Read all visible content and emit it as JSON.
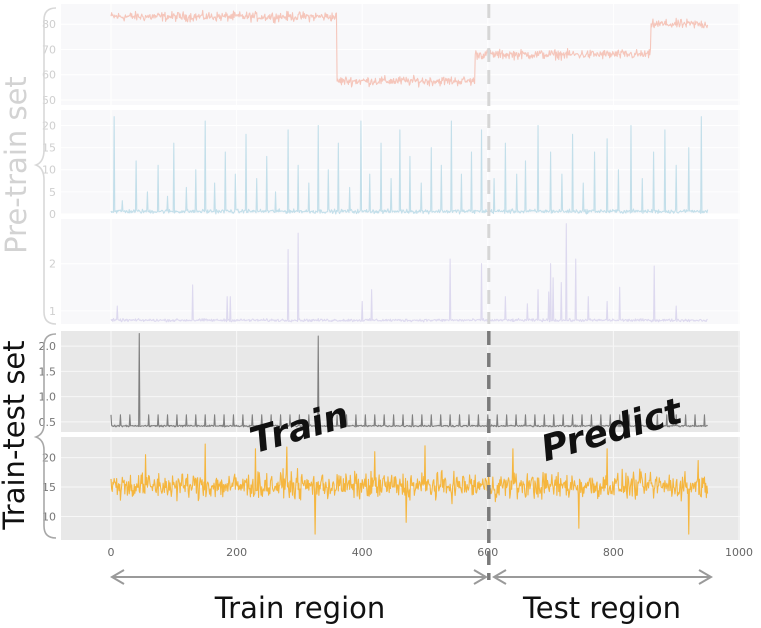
{
  "group_labels": {
    "pretrain": "Pre-train set",
    "traintest": "Train-test set"
  },
  "region_labels": {
    "train": "Train region",
    "test": "Test region"
  },
  "overlay": {
    "train": "Train",
    "predict": "Predict"
  },
  "colors": {
    "pretrain_bg": "#f8f8fa",
    "traintest_bg": "#e8e8e8",
    "dashed_pretrain": "#d6d6d6",
    "dashed_traintest": "#7a7a7a",
    "arrow": "#9a9a9a"
  },
  "chart_data": [
    {
      "type": "line",
      "group": "pretrain",
      "shape": "step",
      "series": [
        {
          "color": "#f5c6bb",
          "segments": [
            [
              0,
              83
            ],
            [
              360,
              57.5
            ],
            [
              580,
              68
            ],
            [
              860,
              80
            ],
            [
              950,
              80
            ]
          ],
          "noise": 1.6
        }
      ],
      "yticks": [
        50,
        60,
        70,
        80
      ],
      "ylim": [
        48,
        88
      ],
      "xlim": [
        0,
        950
      ]
    },
    {
      "type": "line",
      "group": "pretrain",
      "shape": "spiky",
      "series": [
        {
          "color": "#c3dfea",
          "baseline": 0.6,
          "noise": 0.4,
          "spikes": [
            [
              5,
              22
            ],
            [
              18,
              3
            ],
            [
              40,
              12
            ],
            [
              58,
              5
            ],
            [
              75,
              11
            ],
            [
              90,
              4
            ],
            [
              100,
              16
            ],
            [
              120,
              6
            ],
            [
              135,
              10
            ],
            [
              150,
              21
            ],
            [
              165,
              7
            ],
            [
              182,
              14
            ],
            [
              198,
              9
            ],
            [
              215,
              18
            ],
            [
              232,
              8
            ],
            [
              248,
              13
            ],
            [
              262,
              5
            ],
            [
              282,
              19
            ],
            [
              298,
              11
            ],
            [
              315,
              7
            ],
            [
              330,
              20
            ],
            [
              346,
              10
            ],
            [
              362,
              16
            ],
            [
              380,
              6
            ],
            [
              398,
              21
            ],
            [
              412,
              9
            ],
            [
              430,
              16
            ],
            [
              446,
              8
            ],
            [
              460,
              19
            ],
            [
              476,
              13
            ],
            [
              494,
              7
            ],
            [
              510,
              15
            ],
            [
              526,
              11
            ],
            [
              542,
              21
            ],
            [
              558,
              9
            ],
            [
              574,
              14
            ],
            [
              590,
              19
            ],
            [
              610,
              8
            ],
            [
              628,
              16
            ],
            [
              646,
              9
            ],
            [
              660,
              12
            ],
            [
              680,
              20
            ],
            [
              700,
              14
            ],
            [
              718,
              9
            ],
            [
              735,
              18
            ],
            [
              752,
              7
            ],
            [
              770,
              14
            ],
            [
              790,
              17
            ],
            [
              808,
              10
            ],
            [
              828,
              20
            ],
            [
              846,
              8
            ],
            [
              864,
              14
            ],
            [
              882,
              19
            ],
            [
              900,
              11
            ],
            [
              920,
              15
            ],
            [
              940,
              22
            ]
          ]
        }
      ],
      "yticks": [
        0,
        5,
        10,
        15,
        20
      ],
      "ylim": [
        0,
        23.5
      ],
      "xlim": [
        0,
        950
      ]
    },
    {
      "type": "line",
      "group": "pretrain",
      "shape": "spiky",
      "series": [
        {
          "color": "#ddd9ef",
          "baseline": 0.8,
          "noise": 0.025,
          "spikes": [
            [
              10,
              1.1
            ],
            [
              130,
              1.55
            ],
            [
              185,
              1.3
            ],
            [
              190,
              1.3
            ],
            [
              282,
              2.3
            ],
            [
              298,
              2.65
            ],
            [
              400,
              1.2
            ],
            [
              415,
              1.45
            ],
            [
              540,
              2.1
            ],
            [
              590,
              2.0
            ],
            [
              628,
              1.3
            ],
            [
              663,
              1.15
            ],
            [
              680,
              1.45
            ],
            [
              697,
              1.4
            ],
            [
              700,
              2.0
            ],
            [
              704,
              1.7
            ],
            [
              717,
              1.6
            ],
            [
              725,
              2.85
            ],
            [
              740,
              2.1
            ],
            [
              760,
              1.3
            ],
            [
              790,
              1.2
            ],
            [
              810,
              1.5
            ],
            [
              865,
              1.95
            ],
            [
              900,
              1.1
            ]
          ]
        }
      ],
      "yticks": [
        1,
        2
      ],
      "ylim": [
        0.72,
        2.95
      ],
      "xlim": [
        0,
        950
      ]
    },
    {
      "type": "line",
      "group": "traintest",
      "shape": "spiky",
      "series": [
        {
          "color": "#808080",
          "baseline": 0.42,
          "noise": 0.015,
          "periodic_spike": {
            "period": 15,
            "height": 0.22
          },
          "spikes": [
            [
              45,
              2.25
            ],
            [
              330,
              2.2
            ]
          ]
        }
      ],
      "yticks": [
        0.5,
        1.0,
        1.5,
        2.0
      ],
      "ylim": [
        0.3,
        2.3
      ],
      "xlim": [
        0,
        950
      ]
    },
    {
      "type": "line",
      "group": "traintest",
      "shape": "noisy",
      "series": [
        {
          "color": "#f5b63e",
          "baseline": 15.2,
          "noise": 1.9,
          "spikes": [
            [
              55,
              20.5
            ],
            [
              150,
              22.3
            ],
            [
              230,
              21.5
            ],
            [
              280,
              21.8
            ],
            [
              325,
              7.0
            ],
            [
              420,
              21.0
            ],
            [
              470,
              9.0
            ],
            [
              500,
              22.0
            ],
            [
              640,
              21.5
            ],
            [
              745,
              8.0
            ],
            [
              790,
              21.5
            ],
            [
              920,
              7.0
            ],
            [
              935,
              19.5
            ]
          ]
        }
      ],
      "yticks": [
        10,
        15,
        20
      ],
      "ylim": [
        6,
        23.5
      ],
      "xlim": [
        0,
        950
      ]
    }
  ],
  "x_axis": {
    "ticks": [
      0,
      200,
      400,
      600,
      800,
      1000
    ],
    "split_at": 600
  }
}
